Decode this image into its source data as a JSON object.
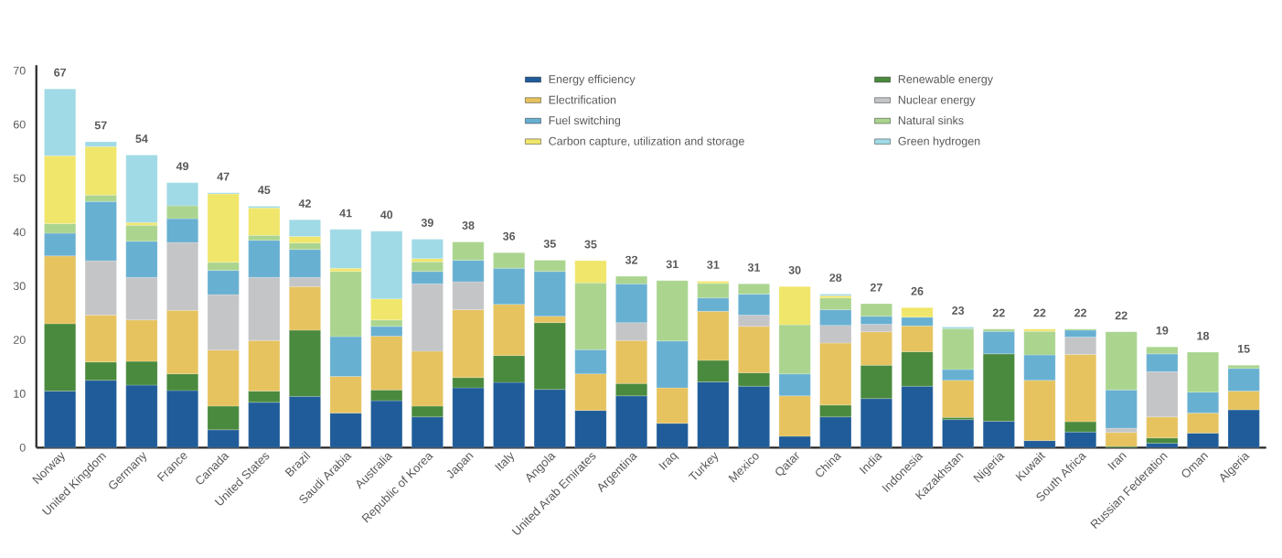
{
  "chart_data": {
    "type": "bar",
    "stacked": true,
    "legend": "top right",
    "ylim": [
      0,
      71
    ],
    "yticks": [
      0,
      10,
      20,
      30,
      40,
      50,
      60,
      70
    ],
    "categories": [
      "Norway",
      "United Kingdom",
      "Germany",
      "France",
      "Canada",
      "United States",
      "Brazil",
      "Saudi Arabia",
      "Australia",
      "Republic of Korea",
      "Japan",
      "Italy",
      "Angola",
      "United Arab Emirates",
      "Argentina",
      "Iraq",
      "Turkey",
      "Mexico",
      "Qatar",
      "China",
      "India",
      "Indonesia",
      "Kazakhstan",
      "Nigeria",
      "Kuwait",
      "South Africa",
      "Iran",
      "Russian Federation",
      "Oman",
      "Algeria"
    ],
    "series": [
      {
        "name": "Energy efficiency",
        "color": "#1f5c99",
        "values": [
          10.5,
          12.5,
          11.6,
          10.6,
          3.3,
          8.4,
          9.5,
          6.4,
          8.7,
          5.7,
          11.1,
          12.1,
          10.8,
          6.9,
          9.6,
          4.5,
          12.2,
          11.4,
          2.1,
          5.7,
          9.1,
          11.4,
          5.2,
          4.9,
          1.3,
          2.9,
          null,
          0.8,
          2.7,
          7.0
        ]
      },
      {
        "name": "Renewable energy",
        "color": "#4a8a3e",
        "values": [
          12.5,
          3.4,
          4.4,
          3.1,
          4.4,
          2.1,
          12.3,
          null,
          2.0,
          2.0,
          1.9,
          5.0,
          12.4,
          null,
          2.3,
          null,
          4.0,
          2.5,
          null,
          2.2,
          6.2,
          6.4,
          0.4,
          12.5,
          null,
          1.9,
          0.2,
          1.0,
          null,
          null
        ]
      },
      {
        "name": "Electrification",
        "color": "#e6c35f",
        "values": [
          12.6,
          8.7,
          7.7,
          11.8,
          10.4,
          9.4,
          8.1,
          6.8,
          10.0,
          10.2,
          12.6,
          9.5,
          1.2,
          6.8,
          8.0,
          6.6,
          9.1,
          8.6,
          7.5,
          11.5,
          6.2,
          4.8,
          6.9,
          null,
          11.2,
          12.5,
          2.6,
          3.9,
          3.7,
          3.5
        ]
      },
      {
        "name": "Nuclear energy",
        "color": "#c4c5c7",
        "values": [
          null,
          10.1,
          7.9,
          12.6,
          10.3,
          11.7,
          1.7,
          null,
          null,
          12.5,
          5.2,
          null,
          null,
          null,
          3.3,
          null,
          null,
          2.1,
          null,
          3.3,
          1.4,
          null,
          null,
          null,
          null,
          3.2,
          0.8,
          8.4,
          null,
          null
        ]
      },
      {
        "name": "Fuel switching",
        "color": "#68b0d2",
        "values": [
          4.2,
          11.0,
          6.7,
          4.4,
          4.5,
          6.9,
          5.2,
          7.4,
          1.8,
          2.3,
          4.0,
          6.7,
          8.3,
          4.5,
          7.2,
          8.7,
          2.5,
          3.9,
          4.1,
          2.9,
          1.5,
          1.6,
          2.0,
          4.2,
          4.7,
          1.3,
          7.1,
          3.3,
          3.9,
          4.2
        ]
      },
      {
        "name": "Natural sinks",
        "color": "#abd58f",
        "values": [
          1.8,
          1.2,
          3.0,
          2.4,
          1.5,
          0.9,
          1.2,
          12.1,
          1.2,
          1.8,
          3.4,
          2.9,
          2.1,
          12.4,
          1.4,
          11.2,
          2.7,
          1.9,
          9.1,
          2.2,
          2.3,
          null,
          7.6,
          0.4,
          4.4,
          0.2,
          10.8,
          1.3,
          7.4,
          0.6
        ]
      },
      {
        "name": "Carbon capture, utilization and storage",
        "color": "#f0e66b",
        "values": [
          12.6,
          9.0,
          0.5,
          null,
          12.7,
          5.1,
          1.2,
          0.6,
          3.9,
          0.6,
          null,
          null,
          null,
          4.1,
          null,
          null,
          0.4,
          null,
          7.1,
          0.4,
          null,
          1.8,
          null,
          null,
          0.4,
          null,
          null,
          null,
          null,
          null
        ]
      },
      {
        "name": "Green hydrogen",
        "color": "#a0dae6",
        "values": [
          12.4,
          0.9,
          12.5,
          4.3,
          0.2,
          0.3,
          3.1,
          7.2,
          12.6,
          3.6,
          null,
          null,
          null,
          null,
          null,
          null,
          null,
          null,
          null,
          0.3,
          null,
          null,
          0.3,
          null,
          null,
          null,
          null,
          null,
          null,
          null
        ]
      }
    ],
    "totals": [
      "67",
      "57",
      "54",
      "49",
      "47",
      "45",
      "42",
      "41",
      "40",
      "39",
      "38",
      "36",
      "35",
      "35",
      "32",
      "31",
      "31",
      "31",
      "30",
      "28",
      "27",
      "26",
      "23",
      "22",
      "22",
      "22",
      "22",
      "19",
      "18",
      "15"
    ]
  }
}
